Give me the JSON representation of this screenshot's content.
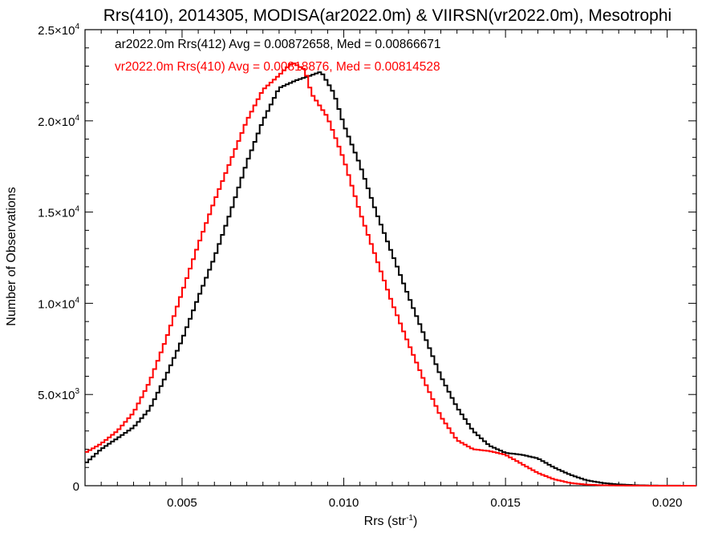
{
  "chart_data": {
    "type": "line",
    "title": "Rrs(410), 2014305, MODISA(ar2022.0m) & VIIRSN(vr2022.0m), Mesotrophi",
    "xlabel": "Rrs (str",
    "xlabel_sup": "-1",
    "xlabel_end": ")",
    "ylabel": "Number of Observations",
    "xlim": [
      0.002,
      0.0209
    ],
    "ylim": [
      0,
      25000
    ],
    "x_ticks": [
      {
        "value": 0.005,
        "label": "0.005"
      },
      {
        "value": 0.01,
        "label": "0.010"
      },
      {
        "value": 0.015,
        "label": "0.015"
      },
      {
        "value": 0.02,
        "label": "0.020"
      }
    ],
    "y_ticks": [
      {
        "value": 0,
        "mant": "0",
        "exp": ""
      },
      {
        "value": 5000,
        "mant": "5.0×10",
        "exp": "3"
      },
      {
        "value": 10000,
        "mant": "1.0×10",
        "exp": "4"
      },
      {
        "value": 15000,
        "mant": "1.5×10",
        "exp": "4"
      },
      {
        "value": 20000,
        "mant": "2.0×10",
        "exp": "4"
      },
      {
        "value": 25000,
        "mant": "2.5×10",
        "exp": "4"
      }
    ],
    "grid": false,
    "legend_position": "top-left",
    "series": [
      {
        "name": "ar2022.0m Rrs(412) Avg = 0.00872658, Med = 0.00866671",
        "color": "#000000",
        "x": [
          0.002,
          0.0025,
          0.003,
          0.0035,
          0.004,
          0.0045,
          0.005,
          0.0055,
          0.006,
          0.0065,
          0.007,
          0.0075,
          0.008,
          0.0085,
          0.009,
          0.0093,
          0.0097,
          0.01,
          0.0105,
          0.011,
          0.0115,
          0.012,
          0.0125,
          0.013,
          0.0135,
          0.014,
          0.0145,
          0.015,
          0.0155,
          0.016,
          0.0165,
          0.017,
          0.0175,
          0.018,
          0.0185,
          0.019,
          0.0195,
          0.02,
          0.0209
        ],
        "values": [
          1200,
          2000,
          2600,
          3200,
          4200,
          6000,
          8000,
          10300,
          12500,
          15000,
          17700,
          20000,
          21800,
          22200,
          22500,
          22700,
          21500,
          19800,
          17600,
          15000,
          12700,
          10400,
          8200,
          6000,
          4300,
          3000,
          2200,
          1800,
          1700,
          1500,
          1000,
          600,
          300,
          150,
          70,
          30,
          10,
          5,
          0
        ]
      },
      {
        "name": "vr2022.0m Rrs(410) Avg = 0.00818876, Med = 0.00814528",
        "color": "#ff0000",
        "x": [
          0.002,
          0.0025,
          0.003,
          0.0035,
          0.004,
          0.0045,
          0.005,
          0.0055,
          0.006,
          0.0065,
          0.007,
          0.0075,
          0.008,
          0.0084,
          0.0088,
          0.009,
          0.0095,
          0.01,
          0.0105,
          0.011,
          0.0115,
          0.012,
          0.0125,
          0.013,
          0.0135,
          0.014,
          0.0145,
          0.015,
          0.0155,
          0.016,
          0.0165,
          0.017,
          0.0175,
          0.018,
          0.0185,
          0.019,
          0.0195,
          0.02,
          0.0209
        ],
        "values": [
          1800,
          2300,
          3000,
          4000,
          5700,
          8000,
          10600,
          13200,
          15600,
          17800,
          20000,
          21700,
          22500,
          23200,
          22800,
          21500,
          20200,
          17900,
          15000,
          12500,
          10000,
          7800,
          5700,
          3800,
          2500,
          2000,
          1900,
          1700,
          1200,
          700,
          350,
          150,
          60,
          25,
          10,
          5,
          2,
          1,
          0
        ]
      }
    ]
  }
}
